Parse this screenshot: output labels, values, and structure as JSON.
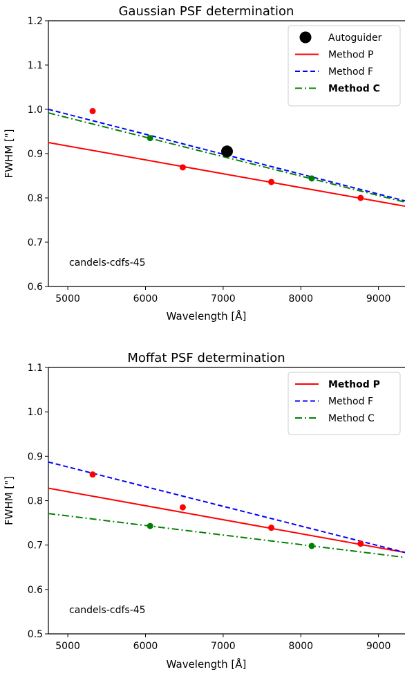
{
  "chart_data": [
    {
      "type": "scatter",
      "title": "Gaussian PSF determination",
      "xlabel": "Wavelength [Å]",
      "ylabel": "FWHM [\"]",
      "xlim": [
        4750,
        9350
      ],
      "ylim": [
        0.6,
        1.2
      ],
      "xticks": [
        "5000",
        "6000",
        "7000",
        "8000",
        "9000"
      ],
      "yticks": [
        "0.6",
        "0.7",
        "0.8",
        "0.9",
        "1.0",
        "1.1",
        "1.2"
      ],
      "annotation": "candels-cdfs-45",
      "legend_position": "top-right",
      "grid": false,
      "lines": [
        {
          "name": "Method P",
          "color": "#ff0000",
          "dash": "solid",
          "x": [
            4750,
            9350
          ],
          "y": [
            0.925,
            0.781
          ],
          "bold": false
        },
        {
          "name": "Method F",
          "color": "#0000ff",
          "dash": "dashed",
          "x": [
            4750,
            9350
          ],
          "y": [
            1.0,
            0.793
          ],
          "bold": false
        },
        {
          "name": "Method C",
          "color": "#008000",
          "dash": "dashdot",
          "x": [
            4750,
            9350
          ],
          "y": [
            0.992,
            0.79
          ],
          "bold": true
        }
      ],
      "points": [
        {
          "series": "Method P",
          "color": "#ff0000",
          "x": [
            5320,
            6480,
            7620,
            8770
          ],
          "y": [
            0.996,
            0.869,
            0.836,
            0.8
          ]
        },
        {
          "series": "Method C",
          "color": "#008000",
          "x": [
            6060,
            8140
          ],
          "y": [
            0.935,
            0.844
          ]
        }
      ],
      "big_points": [
        {
          "name": "Autoguider",
          "color": "#000000",
          "x": 7050,
          "y": 0.905
        }
      ]
    },
    {
      "type": "scatter",
      "title": "Moffat PSF determination",
      "xlabel": "Wavelength [Å]",
      "ylabel": "FWHM [\"]",
      "xlim": [
        4750,
        9350
      ],
      "ylim": [
        0.5,
        1.1
      ],
      "xticks": [
        "5000",
        "6000",
        "7000",
        "8000",
        "9000"
      ],
      "yticks": [
        "0.5",
        "0.6",
        "0.7",
        "0.8",
        "0.9",
        "1.0",
        "1.1"
      ],
      "annotation": "candels-cdfs-45",
      "legend_position": "top-right",
      "grid": false,
      "lines": [
        {
          "name": "Method P",
          "color": "#ff0000",
          "dash": "solid",
          "x": [
            4750,
            9350
          ],
          "y": [
            0.828,
            0.683
          ],
          "bold": true
        },
        {
          "name": "Method F",
          "color": "#0000ff",
          "dash": "dashed",
          "x": [
            4750,
            9350
          ],
          "y": [
            0.887,
            0.683
          ],
          "bold": false
        },
        {
          "name": "Method C",
          "color": "#008000",
          "dash": "dashdot",
          "x": [
            4750,
            9350
          ],
          "y": [
            0.771,
            0.672
          ],
          "bold": false
        }
      ],
      "points": [
        {
          "series": "Method P",
          "color": "#ff0000",
          "x": [
            5320,
            6480,
            7620,
            8770
          ],
          "y": [
            0.859,
            0.785,
            0.739,
            0.703
          ]
        },
        {
          "series": "Method C",
          "color": "#008000",
          "x": [
            6060,
            8140
          ],
          "y": [
            0.743,
            0.698
          ]
        }
      ],
      "big_points": []
    }
  ]
}
